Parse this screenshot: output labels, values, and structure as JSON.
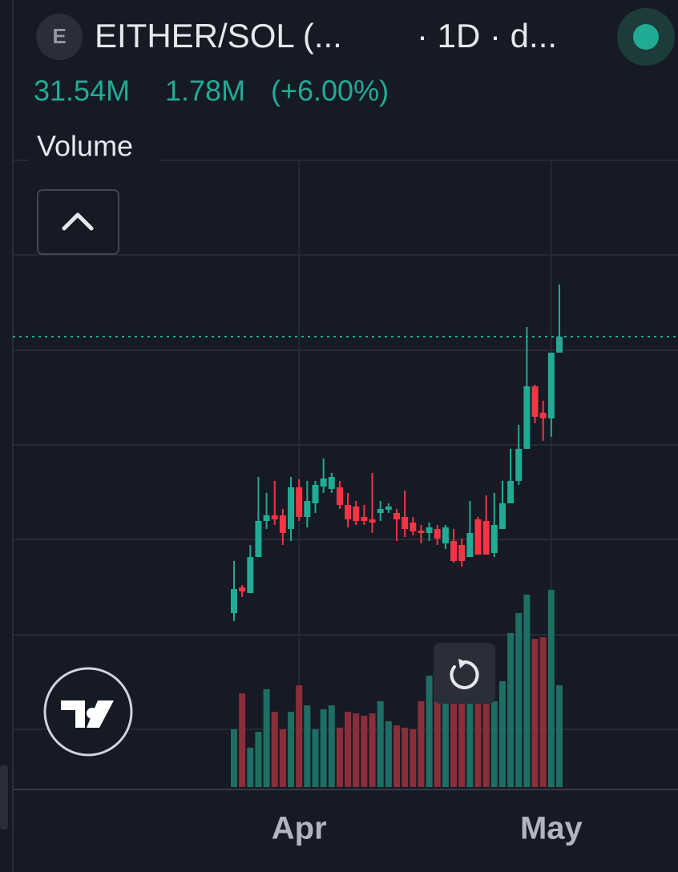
{
  "header": {
    "icon_letter": "E",
    "symbol": "EITHER/SOL (...",
    "interval": "· 1D · d..."
  },
  "legend_values": [
    "31.54M",
    "1.78M",
    "(+6.00%)"
  ],
  "indicator": "Volume",
  "chart_data": {
    "type": "candlestick",
    "categories": [
      null,
      null,
      null,
      null,
      null,
      null,
      null,
      null,
      "Apr",
      null,
      null,
      null,
      null,
      null,
      null,
      null,
      null,
      null,
      null,
      null,
      null,
      null,
      null,
      null,
      null,
      null,
      null,
      null,
      null,
      null,
      null,
      null,
      null,
      null,
      null,
      null,
      null,
      null,
      null,
      "May",
      null
    ],
    "open": [
      8.75,
      16.75,
      15,
      26.25,
      37.5,
      39.25,
      39.25,
      35,
      48,
      38.75,
      43,
      48.25,
      47.5,
      48,
      42.5,
      42,
      38.75,
      38,
      40,
      41,
      40,
      38.75,
      37,
      34.5,
      33.75,
      35,
      30.5,
      31.25,
      30,
      26.25,
      38,
      37.5,
      27.5,
      35,
      43,
      50,
      60,
      79.5,
      71.25,
      69.5,
      90
    ],
    "high": [
      25,
      17.5,
      30,
      51.25,
      46.25,
      50,
      41.25,
      51.25,
      50.5,
      50,
      50,
      57,
      52.5,
      50,
      46.25,
      43.75,
      42.5,
      52.5,
      43.75,
      43,
      41.25,
      47,
      38.75,
      36.25,
      37,
      36.25,
      36.25,
      35,
      32,
      43.75,
      38.75,
      45.5,
      46.25,
      50,
      60,
      67.5,
      98,
      80,
      75,
      90,
      111.25
    ],
    "low": [
      6.25,
      13.75,
      15,
      26.25,
      35,
      36.25,
      30,
      31.25,
      37.5,
      35.5,
      40,
      46.25,
      46.25,
      41.25,
      35.5,
      36.25,
      36.25,
      33.75,
      37.5,
      40,
      31.25,
      32.5,
      33,
      30.5,
      31.25,
      30,
      28.75,
      24.5,
      23.25,
      26.25,
      27,
      27,
      26.25,
      35,
      43,
      48.75,
      60,
      68,
      62.5,
      63.75,
      90
    ],
    "close": [
      16.25,
      15.5,
      26.25,
      37.5,
      39.25,
      38,
      33.75,
      48,
      38.75,
      43.75,
      48.75,
      50.75,
      51.25,
      42.5,
      38,
      37.5,
      37.5,
      37,
      41.25,
      42,
      38,
      35,
      34.25,
      33.75,
      35.5,
      32,
      35.5,
      25,
      25,
      33.75,
      27,
      27,
      36.25,
      43,
      50,
      60,
      79.5,
      70,
      69.5,
      90,
      95
    ],
    "volumes": [
      17.9,
      29.0,
      12.2,
      17.1,
      30.3,
      23.3,
      17.9,
      23.3,
      31.5,
      25.3,
      17.9,
      24.1,
      25.3,
      18.4,
      23.3,
      22.8,
      22.1,
      22.8,
      26.6,
      20.4,
      19.1,
      18.4,
      17.9,
      26.6,
      34.5,
      31.5,
      29.8,
      27.8,
      27.8,
      30.3,
      27.8,
      25.8,
      26.6,
      32.8,
      47.7,
      53.9,
      59.6,
      45.9,
      46.4,
      61.1,
      31.54
    ],
    "up_color": "#22ab94",
    "down_color": "#f23645",
    "volume_up_color": "#1f6e63",
    "volume_down_color": "#8a2f39",
    "ylim": [
      0,
      200
    ],
    "vlim": [
      0,
      70
    ],
    "grid": true
  }
}
